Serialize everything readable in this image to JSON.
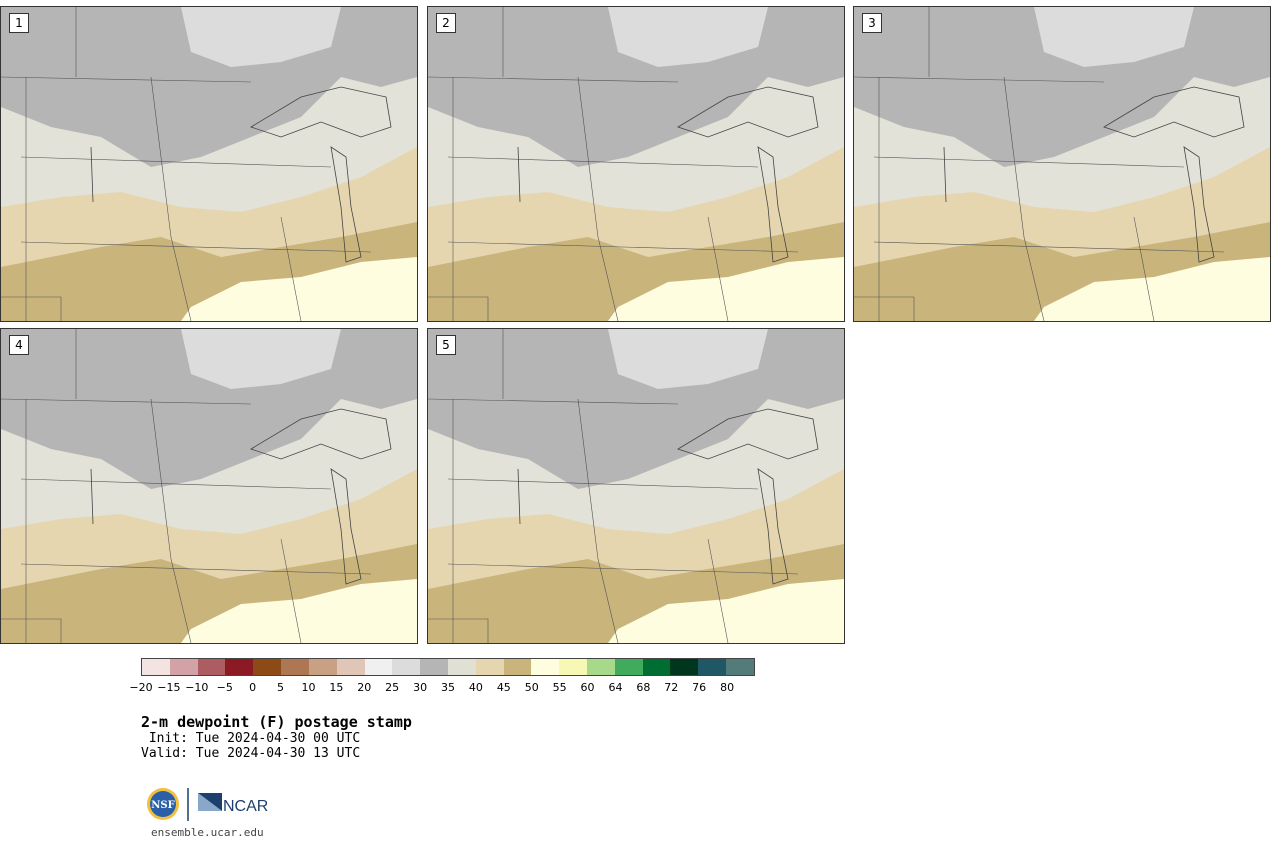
{
  "panels": [
    {
      "label": "1"
    },
    {
      "label": "2"
    },
    {
      "label": "3"
    },
    {
      "label": "4"
    },
    {
      "label": "5"
    }
  ],
  "colorbar": {
    "colors": [
      "#f3e3e3",
      "#d3a2a6",
      "#ad5d62",
      "#8c1a25",
      "#8c4a17",
      "#ac7752",
      "#c9a084",
      "#e0c6b6",
      "#f0f0f0",
      "#dcdcdc",
      "#b5b5b5",
      "#e0e0d4",
      "#e6d6b0",
      "#c9b47c",
      "#fffde0",
      "#f8f8b5",
      "#a6d98a",
      "#41ab5d",
      "#006d32",
      "#00361d",
      "#1f5765",
      "#537b79"
    ],
    "ticks": [
      "−20",
      "−15",
      "−10",
      "−5",
      "0",
      "5",
      "10",
      "15",
      "20",
      "25",
      "30",
      "35",
      "40",
      "45",
      "50",
      "55",
      "60",
      "64",
      "68",
      "72",
      "76",
      "80"
    ]
  },
  "title": "2-m dewpoint (F) postage stamp",
  "init": " Init: Tue 2024-04-30 00 UTC",
  "valid": "Valid: Tue 2024-04-30 13 UTC",
  "logos": {
    "nsf": "NSF",
    "ncar": "NCAR"
  },
  "site": "ensemble.ucar.edu"
}
